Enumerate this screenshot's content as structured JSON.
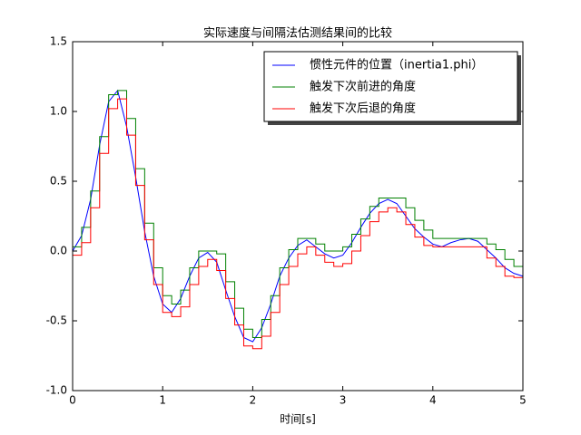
{
  "chart_data": {
    "type": "line",
    "title": "实际速度与间隔法估测结果间的比较",
    "x_label": "时间[s]",
    "x": [
      0,
      0.1,
      0.2,
      0.3,
      0.4,
      0.5,
      0.6,
      0.7,
      0.8,
      0.9,
      1.0,
      1.1,
      1.2,
      1.3,
      1.4,
      1.5,
      1.6,
      1.7,
      1.8,
      1.9,
      2.0,
      2.1,
      2.2,
      2.3,
      2.4,
      2.5,
      2.6,
      2.7,
      2.8,
      2.9,
      3.0,
      3.1,
      3.2,
      3.3,
      3.4,
      3.5,
      3.6,
      3.7,
      3.8,
      3.9,
      4.0,
      4.1,
      4.2,
      4.3,
      4.4,
      4.5,
      4.6,
      4.7,
      4.8,
      4.9,
      5.0
    ],
    "series": [
      {
        "name": "惯性元件的位置（inertia1.phi）",
        "color": "#0000ff",
        "drawstyle": "default",
        "values": [
          0.0,
          0.11,
          0.37,
          0.76,
          1.07,
          1.15,
          0.89,
          0.53,
          0.14,
          -0.18,
          -0.38,
          -0.44,
          -0.34,
          -0.18,
          -0.05,
          -0.01,
          -0.08,
          -0.28,
          -0.47,
          -0.62,
          -0.65,
          -0.55,
          -0.38,
          -0.18,
          -0.05,
          0.04,
          0.08,
          0.03,
          -0.02,
          -0.05,
          -0.03,
          0.06,
          0.17,
          0.27,
          0.34,
          0.37,
          0.34,
          0.25,
          0.16,
          0.1,
          0.05,
          0.03,
          0.06,
          0.08,
          0.09,
          0.07,
          0.01,
          -0.05,
          -0.12,
          -0.16,
          -0.18
        ]
      },
      {
        "name": "触发下次前进的角度",
        "color": "#008000",
        "drawstyle": "steps-post",
        "values": [
          0.03,
          0.17,
          0.43,
          0.82,
          1.12,
          1.15,
          0.95,
          0.59,
          0.2,
          -0.12,
          -0.32,
          -0.38,
          -0.28,
          -0.12,
          0.0,
          0.0,
          -0.02,
          -0.22,
          -0.41,
          -0.56,
          -0.62,
          -0.49,
          -0.32,
          -0.12,
          0.01,
          0.09,
          0.09,
          0.05,
          0.0,
          0.0,
          0.03,
          0.12,
          0.23,
          0.32,
          0.38,
          0.38,
          0.38,
          0.31,
          0.22,
          0.15,
          0.09,
          0.09,
          0.09,
          0.09,
          0.09,
          0.09,
          0.05,
          0.01,
          -0.06,
          -0.11,
          -0.13
        ]
      },
      {
        "name": "触发下次后退的角度",
        "color": "#ff0000",
        "drawstyle": "steps-post",
        "values": [
          -0.03,
          0.06,
          0.31,
          0.7,
          1.02,
          1.09,
          0.83,
          0.47,
          0.08,
          -0.24,
          -0.44,
          -0.47,
          -0.4,
          -0.24,
          -0.11,
          -0.06,
          -0.14,
          -0.34,
          -0.53,
          -0.68,
          -0.7,
          -0.61,
          -0.44,
          -0.24,
          -0.11,
          -0.02,
          0.03,
          -0.03,
          -0.08,
          -0.11,
          -0.09,
          0.0,
          0.11,
          0.21,
          0.28,
          0.31,
          0.28,
          0.19,
          0.1,
          0.04,
          0.03,
          0.03,
          0.03,
          0.03,
          0.03,
          0.03,
          -0.05,
          -0.11,
          -0.18,
          -0.19,
          -0.19
        ]
      }
    ],
    "xlim": [
      0,
      5
    ],
    "xticks": [
      0,
      1,
      2,
      3,
      4,
      5
    ],
    "ylim": [
      -1.0,
      1.5
    ],
    "yticks": [
      {
        "value": -1.0,
        "label": "-1.0"
      },
      -0.5,
      {
        "value": 0.0,
        "label": "0.0"
      },
      0.5,
      {
        "value": 1.0,
        "label": "1.0"
      },
      1.5
    ],
    "legend": "upper right",
    "grid": false
  }
}
